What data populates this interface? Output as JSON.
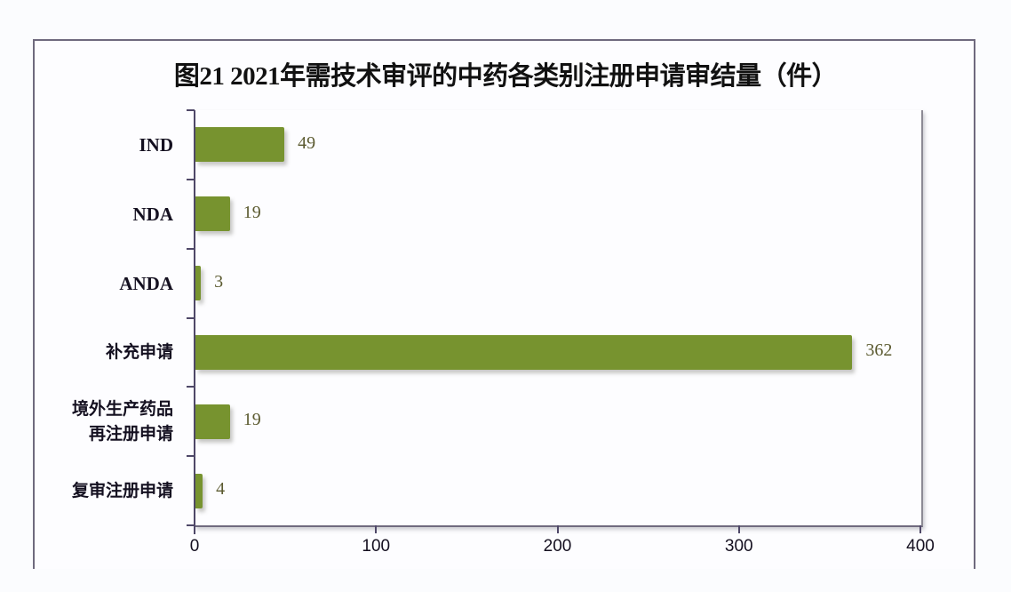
{
  "chart_data": {
    "type": "bar",
    "orientation": "horizontal",
    "title": "图21 2021年需技术审评的中药各类别注册申请审结量（件）",
    "categories": [
      "IND",
      "NDA",
      "ANDA",
      "补充申请",
      "境外生产药品再注册申请",
      "复审注册申请"
    ],
    "category_display_lines": [
      [
        "IND"
      ],
      [
        "NDA"
      ],
      [
        "ANDA"
      ],
      [
        "补充申请"
      ],
      [
        "境外生产药品",
        "再注册申请"
      ],
      [
        "复审注册申请"
      ]
    ],
    "values": [
      49,
      19,
      3,
      362,
      19,
      4
    ],
    "data_labels": [
      "49",
      "19",
      "3",
      "362",
      "19",
      "4"
    ],
    "xlabel": "",
    "ylabel": "",
    "xlim": [
      0,
      400
    ],
    "x_ticks": [
      "0",
      "100",
      "200",
      "300",
      "400"
    ],
    "grid": false,
    "legend": null,
    "bar_color": "#77932f",
    "label_color": "#5b5a30"
  },
  "title": "图21 2021年需技术审评的中药各类别注册申请审结量（件）"
}
